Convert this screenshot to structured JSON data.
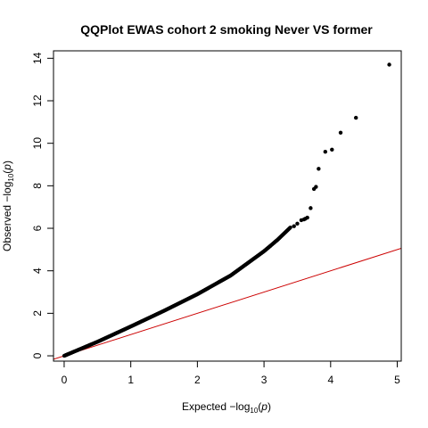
{
  "chart_data": {
    "type": "scatter",
    "title": "QQPlot EWAS cohort 2 smoking Never VS former",
    "xlabel": {
      "prefix": "Expected  −log",
      "sub": "10",
      "open": "(",
      "var": "p",
      "close": ")"
    },
    "ylabel": {
      "prefix": "Observed  −log",
      "sub": "10",
      "open": "(",
      "var": "p",
      "close": ")"
    },
    "xlim": [
      -0.16,
      5.06
    ],
    "ylim": [
      -0.25,
      14.35
    ],
    "xticks": [
      0,
      1,
      2,
      3,
      4,
      5
    ],
    "yticks": [
      0,
      2,
      4,
      6,
      8,
      10,
      12,
      14
    ],
    "xtick_labels": [
      "0",
      "1",
      "2",
      "3",
      "4",
      "5"
    ],
    "ytick_labels": [
      "0",
      "2",
      "4",
      "6",
      "8",
      "10",
      "12",
      "14"
    ],
    "reference_line": {
      "slope": 1,
      "intercept": 0,
      "color": "#cc0000"
    },
    "point_color": "#000000",
    "curve_knots": {
      "x": [
        0.0,
        0.5,
        1.0,
        1.5,
        2.0,
        2.5,
        3.0,
        3.2,
        3.4
      ],
      "y": [
        0.0,
        0.66,
        1.38,
        2.12,
        2.9,
        3.78,
        4.92,
        5.45,
        6.05
      ]
    },
    "points": {
      "x": [
        3.45,
        3.5,
        3.56,
        3.6,
        3.62,
        3.65,
        3.7,
        3.75,
        3.78,
        3.82,
        3.92,
        4.02,
        4.15,
        4.38,
        4.88
      ],
      "y": [
        6.1,
        6.22,
        6.38,
        6.42,
        6.45,
        6.5,
        6.95,
        7.85,
        7.95,
        8.8,
        9.6,
        9.7,
        10.5,
        11.2,
        13.7
      ]
    }
  }
}
